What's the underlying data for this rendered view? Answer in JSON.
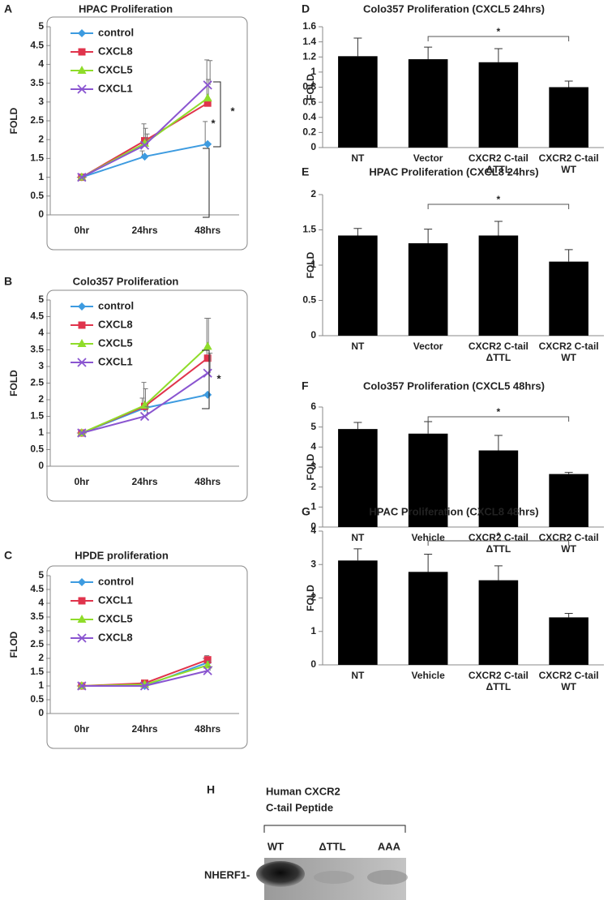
{
  "chart_data": [
    {
      "type": "line",
      "panel": "A",
      "title": "HPAC Proliferation",
      "y_label": "FOLD",
      "categories": [
        "0hr",
        "24hrs",
        "48hrs"
      ],
      "ylim": [
        0,
        5
      ],
      "yticks": [
        0,
        0.5,
        1,
        1.5,
        2,
        2.5,
        3,
        3.5,
        4,
        4.5,
        5
      ],
      "legend": "upper left",
      "series": [
        {
          "name": "control",
          "color": "#3d9be0",
          "marker": "diamond",
          "values": [
            1,
            1.55,
            1.88
          ],
          "errors": [
            0,
            0.15,
            0.6
          ]
        },
        {
          "name": "CXCL8",
          "color": "#e0344c",
          "marker": "square",
          "values": [
            1,
            1.97,
            2.97
          ],
          "errors": [
            0,
            0.45,
            1.15
          ]
        },
        {
          "name": "CXCL5",
          "color": "#8fdc2a",
          "marker": "triangle",
          "values": [
            1,
            1.9,
            3.1
          ],
          "errors": [
            0,
            0.4,
            0.5
          ]
        },
        {
          "name": "CXCL1",
          "color": "#8a55d0",
          "marker": "x",
          "values": [
            1,
            1.85,
            3.45
          ],
          "errors": [
            0,
            0.3,
            0.65
          ]
        }
      ],
      "annotations": [
        "*",
        "*"
      ]
    },
    {
      "type": "line",
      "panel": "B",
      "title": "Colo357 Proliferation",
      "y_label": "FOLD",
      "categories": [
        "0hr",
        "24hrs",
        "48hrs"
      ],
      "ylim": [
        0,
        5
      ],
      "yticks": [
        0,
        0.5,
        1,
        1.5,
        2,
        2.5,
        3,
        3.5,
        4,
        4.5,
        5
      ],
      "legend": "upper left",
      "series": [
        {
          "name": "control",
          "color": "#3d9be0",
          "marker": "diamond",
          "values": [
            1,
            1.75,
            2.15
          ],
          "errors": [
            0,
            0.3,
            0
          ]
        },
        {
          "name": "CXCL8",
          "color": "#e0344c",
          "marker": "square",
          "values": [
            1,
            1.8,
            3.25
          ],
          "errors": [
            0,
            0.72,
            1.2
          ]
        },
        {
          "name": "CXCL5",
          "color": "#8fdc2a",
          "marker": "triangle",
          "values": [
            1,
            1.83,
            3.6
          ],
          "errors": [
            0,
            0.5,
            0.85
          ]
        },
        {
          "name": "CXCL1",
          "color": "#8a55d0",
          "marker": "x",
          "values": [
            1,
            1.5,
            2.8
          ],
          "errors": [
            0,
            0.3,
            0.6
          ]
        }
      ],
      "annotations": [
        "*"
      ]
    },
    {
      "type": "line",
      "panel": "C",
      "title": "HPDE proliferation",
      "y_label": "FLOD",
      "categories": [
        "0hr",
        "24hrs",
        "48hrs"
      ],
      "ylim": [
        0,
        5
      ],
      "yticks": [
        0,
        0.5,
        1,
        1.5,
        2,
        2.5,
        3,
        3.5,
        4,
        4.5,
        5
      ],
      "legend": "upper left",
      "series": [
        {
          "name": "control",
          "color": "#3d9be0",
          "marker": "diamond",
          "values": [
            1,
            1.0,
            1.85
          ],
          "errors": [
            0,
            0.05,
            0.15
          ]
        },
        {
          "name": "CXCL1",
          "color": "#e0344c",
          "marker": "square",
          "values": [
            1,
            1.1,
            1.95
          ],
          "errors": [
            0,
            0.05,
            0.15
          ]
        },
        {
          "name": "CXCL5",
          "color": "#8fdc2a",
          "marker": "triangle",
          "values": [
            1,
            1.05,
            1.75
          ],
          "errors": [
            0,
            0.05,
            0.15
          ]
        },
        {
          "name": "CXCL8",
          "color": "#8a55d0",
          "marker": "x",
          "values": [
            1,
            1.0,
            1.55
          ],
          "errors": [
            0,
            0.05,
            0.15
          ]
        }
      ],
      "annotations": []
    },
    {
      "type": "bar",
      "panel": "D",
      "title": "Colo357 Proliferation (CXCL5  24hrs)",
      "y_label": "FOLD",
      "color": "#000000",
      "categories": [
        [
          "NT"
        ],
        [
          "Vector"
        ],
        [
          "CXCR2 C-tail",
          "ΔTTL"
        ],
        [
          "CXCR2 C-tail",
          "WT"
        ]
      ],
      "values": [
        1.21,
        1.17,
        1.13,
        0.8
      ],
      "errors": [
        0.24,
        0.16,
        0.18,
        0.08
      ],
      "ylim": [
        0,
        1.6
      ],
      "yticks": [
        0,
        0.2,
        0.4,
        0.6,
        0.8,
        1,
        1.2,
        1.4,
        1.6
      ],
      "annotations": [
        "*"
      ]
    },
    {
      "type": "bar",
      "panel": "E",
      "title": "HPAC Proliferation (CXCL8  24hrs)",
      "y_label": "FOLD",
      "color": "#000000",
      "categories": [
        [
          "NT"
        ],
        [
          "Vector"
        ],
        [
          "CXCR2 C-tail",
          "ΔTTL"
        ],
        [
          "CXCR2 C-tail",
          "WT"
        ]
      ],
      "values": [
        1.42,
        1.31,
        1.42,
        1.05
      ],
      "errors": [
        0.1,
        0.2,
        0.2,
        0.17
      ],
      "ylim": [
        0,
        2
      ],
      "yticks": [
        0,
        0.5,
        1,
        1.5,
        2
      ],
      "annotations": [
        "*"
      ]
    },
    {
      "type": "bar",
      "panel": "F",
      "title": "Colo357 Proliferation (CXCL5  48hrs)",
      "y_label": "FOLD",
      "color": "#000000",
      "categories": [
        [
          "NT"
        ],
        [
          "Vehicle"
        ],
        [
          "CXCR2 C-tail",
          "ΔTTL"
        ],
        [
          "CXCR2 C-tail",
          "WT"
        ]
      ],
      "values": [
        4.9,
        4.67,
        3.83,
        2.65
      ],
      "errors": [
        0.33,
        0.6,
        0.75,
        0.08
      ],
      "ylim": [
        0,
        6
      ],
      "yticks": [
        0,
        1,
        2,
        3,
        4,
        5,
        6
      ],
      "annotations": [
        "*"
      ]
    },
    {
      "type": "bar",
      "panel": "G",
      "title": "HPAC Proliferation (CXCL8  48hrs)",
      "y_label": "FOLD",
      "color": "#000000",
      "categories": [
        [
          "NT"
        ],
        [
          "Vehicle"
        ],
        [
          "CXCR2 C-tail",
          "ΔTTL"
        ],
        [
          "CXCR2 C-tail",
          "WT"
        ]
      ],
      "values": [
        3.12,
        2.78,
        2.53,
        1.42
      ],
      "errors": [
        0.35,
        0.53,
        0.43,
        0.12
      ],
      "ylim": [
        0,
        4
      ],
      "yticks": [
        0,
        1,
        2,
        3,
        4
      ],
      "annotations": [
        "*"
      ]
    }
  ],
  "blot": {
    "panel": "H",
    "title_lines": [
      "Human CXCR2",
      "C-tail Peptide"
    ],
    "lanes": [
      "WT",
      "ΔTTL",
      "AAA"
    ],
    "band_label": "NHERF1-"
  }
}
